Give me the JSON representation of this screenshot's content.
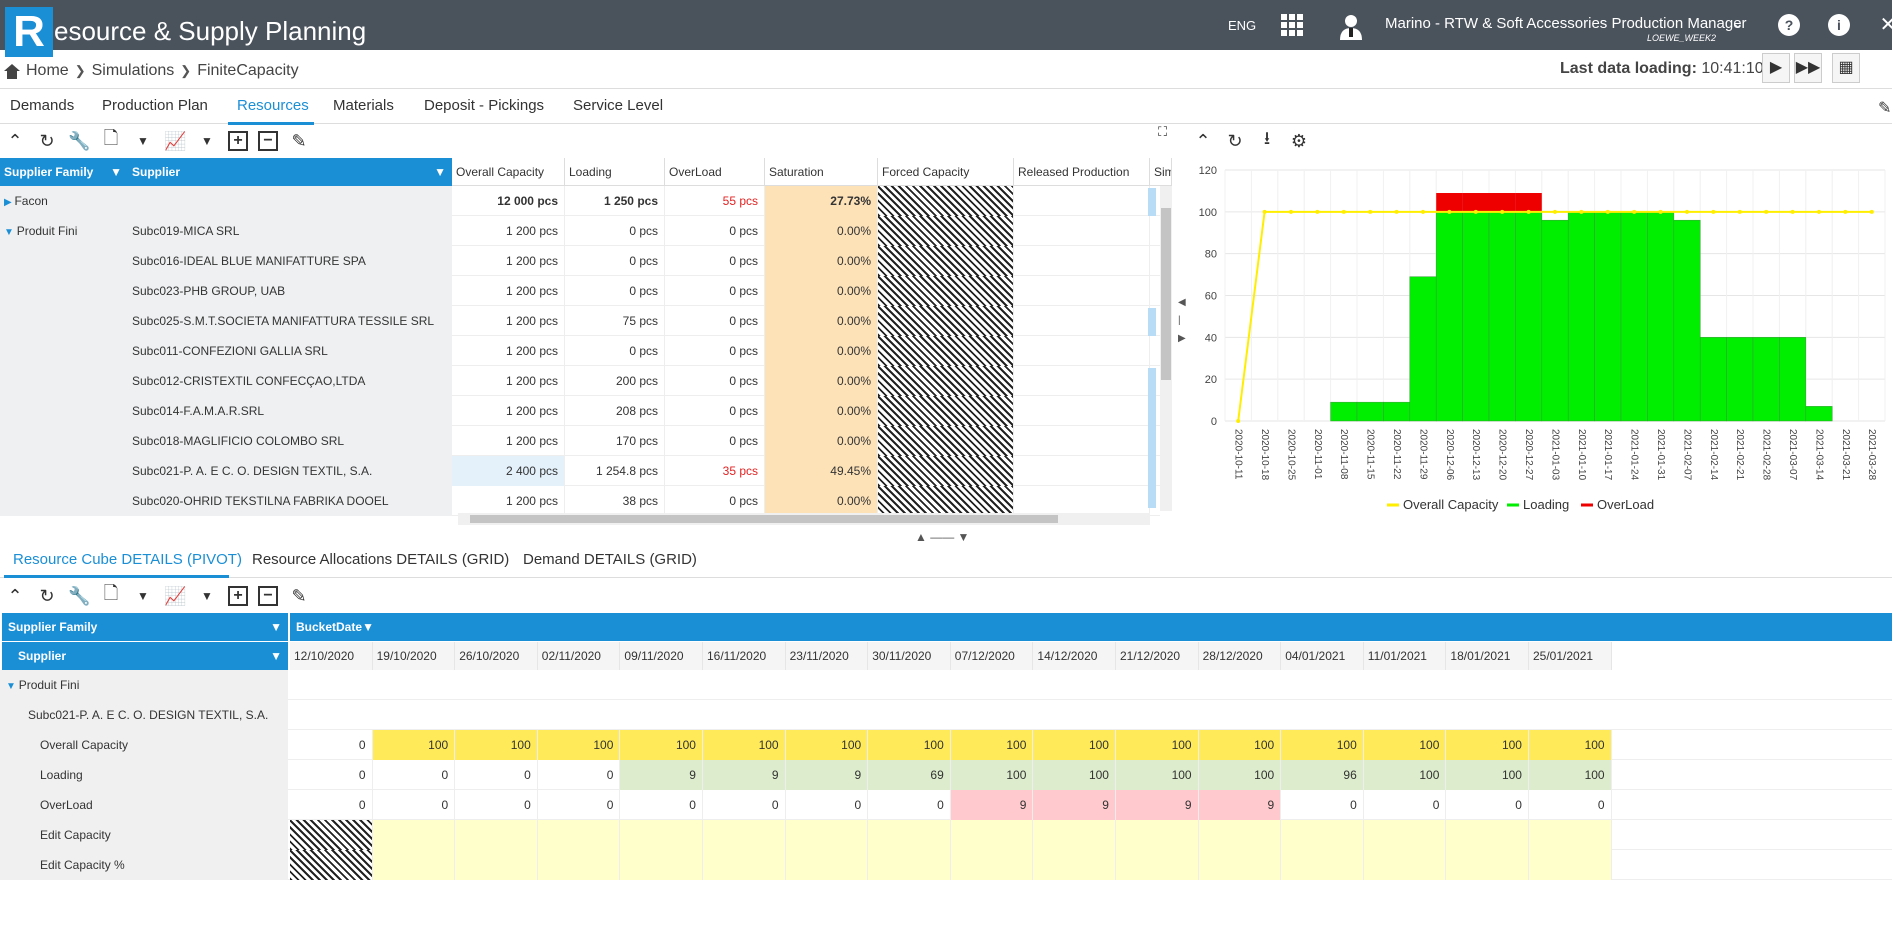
{
  "app": {
    "logo_letter": "R",
    "title": "esource & Supply Planning",
    "lang": "ENG",
    "user": "Marino - RTW & Soft Accessories Production Manager",
    "user_sub": "LOEWE_WEEK2"
  },
  "breadcrumb": [
    "Home",
    "Simulations",
    "FiniteCapacity"
  ],
  "last_load": {
    "label": "Last data loading:",
    "time": "10:41:10"
  },
  "tabs": [
    "Demands",
    "Production Plan",
    "Resources",
    "Materials",
    "Deposit - Pickings",
    "Service Level"
  ],
  "grid": {
    "headers": {
      "family": "Supplier Family",
      "supplier": "Supplier",
      "overall": "Overall Capacity",
      "loading": "Loading",
      "overload": "OverLoad",
      "saturation": "Saturation",
      "forced": "Forced Capacity",
      "released": "Released Production",
      "sim": "Sim"
    },
    "rows": [
      {
        "family": "Facon",
        "supplier": "",
        "overall": "12 000 pcs",
        "loading": "1 250 pcs",
        "overload": "55 pcs",
        "saturation": "27.73%"
      },
      {
        "family": "Produit Fini",
        "supplier": "Subc019-MICA SRL",
        "overall": "1 200 pcs",
        "loading": "0 pcs",
        "overload": "0 pcs",
        "saturation": "0.00%"
      },
      {
        "family": "",
        "supplier": "Subc016-IDEAL BLUE MANIFATTURE SPA",
        "overall": "1 200 pcs",
        "loading": "0 pcs",
        "overload": "0 pcs",
        "saturation": "0.00%"
      },
      {
        "family": "",
        "supplier": "Subc023-PHB GROUP, UAB",
        "overall": "1 200 pcs",
        "loading": "0 pcs",
        "overload": "0 pcs",
        "saturation": "0.00%"
      },
      {
        "family": "",
        "supplier": "Subc025-S.M.T.SOCIETA MANIFATTURA TESSILE SRL",
        "overall": "1 200 pcs",
        "loading": "75 pcs",
        "overload": "0 pcs",
        "saturation": "0.00%"
      },
      {
        "family": "",
        "supplier": "Subc011-CONFEZIONI GALLIA SRL",
        "overall": "1 200 pcs",
        "loading": "0 pcs",
        "overload": "0 pcs",
        "saturation": "0.00%"
      },
      {
        "family": "",
        "supplier": "Subc012-CRISTEXTIL CONFECÇAO,LTDA",
        "overall": "1 200 pcs",
        "loading": "200 pcs",
        "overload": "0 pcs",
        "saturation": "0.00%"
      },
      {
        "family": "",
        "supplier": "Subc014-F.A.M.A.R.SRL",
        "overall": "1 200 pcs",
        "loading": "208 pcs",
        "overload": "0 pcs",
        "saturation": "0.00%"
      },
      {
        "family": "",
        "supplier": "Subc018-MAGLIFICIO COLOMBO SRL",
        "overall": "1 200 pcs",
        "loading": "170 pcs",
        "overload": "0 pcs",
        "saturation": "0.00%"
      },
      {
        "family": "",
        "supplier": "Subc021-P. A. E C. O. DESIGN TEXTIL, S.A.",
        "overall": "2 400 pcs",
        "loading": "1 254.8 pcs",
        "overload": "35 pcs",
        "saturation": "49.45%"
      },
      {
        "family": "",
        "supplier": "Subc020-OHRID TEKSTILNA FABRIKA DOOEL",
        "overall": "1 200 pcs",
        "loading": "38 pcs",
        "overload": "0 pcs",
        "saturation": "0.00%"
      }
    ]
  },
  "chart_data": {
    "type": "bar",
    "categories": [
      "2020-10-11",
      "2020-10-18",
      "2020-10-25",
      "2020-11-01",
      "2020-11-08",
      "2020-11-15",
      "2020-11-22",
      "2020-11-29",
      "2020-12-06",
      "2020-12-13",
      "2020-12-20",
      "2020-12-27",
      "2021-01-03",
      "2021-01-10",
      "2021-01-17",
      "2021-01-24",
      "2021-01-31",
      "2021-02-07",
      "2021-02-14",
      "2021-02-21",
      "2021-02-28",
      "2021-03-07",
      "2021-03-14",
      "2021-03-21",
      "2021-03-28"
    ],
    "series": [
      {
        "name": "Overall Capacity",
        "type": "line",
        "color": "#ffee00",
        "values": [
          0,
          100,
          100,
          100,
          100,
          100,
          100,
          100,
          100,
          100,
          100,
          100,
          100,
          100,
          100,
          100,
          100,
          100,
          100,
          100,
          100,
          100,
          100,
          100,
          100
        ]
      },
      {
        "name": "Loading",
        "type": "bar",
        "color": "#00ee00",
        "values": [
          0,
          0,
          0,
          0,
          9,
          9,
          9,
          69,
          100,
          100,
          100,
          100,
          96,
          100,
          100,
          100,
          100,
          96,
          40,
          40,
          40,
          40,
          7,
          0,
          0
        ]
      },
      {
        "name": "OverLoad",
        "type": "bar",
        "color": "#ee0000",
        "values": [
          0,
          0,
          0,
          0,
          0,
          0,
          0,
          0,
          9,
          9,
          9,
          9,
          0,
          0,
          0,
          0,
          0,
          0,
          0,
          0,
          0,
          0,
          0,
          0,
          0
        ]
      }
    ],
    "yticks": [
      0,
      20,
      40,
      60,
      80,
      100,
      120
    ],
    "ylim": [
      0,
      120
    ]
  },
  "tabs2": [
    "Resource Cube DETAILS (PIVOT)",
    "Resource Allocations DETAILS (GRID)",
    "Demand DETAILS (GRID)"
  ],
  "pivot": {
    "h_family": "Supplier Family",
    "h_bucket": "BucketDate",
    "h_supplier": "Supplier",
    "dates": [
      "12/10/2020",
      "19/10/2020",
      "26/10/2020",
      "02/11/2020",
      "09/11/2020",
      "16/11/2020",
      "23/11/2020",
      "30/11/2020",
      "07/12/2020",
      "14/12/2020",
      "21/12/2020",
      "28/12/2020",
      "04/01/2021",
      "11/01/2021",
      "18/01/2021",
      "25/01/2021"
    ],
    "family": "Produit Fini",
    "supplier": "Subc021-P. A. E C. O. DESIGN TEXTIL, S.A.",
    "measures": [
      {
        "label": "Overall Capacity",
        "values": [
          "0",
          "100",
          "100",
          "100",
          "100",
          "100",
          "100",
          "100",
          "100",
          "100",
          "100",
          "100",
          "100",
          "100",
          "100",
          "100"
        ]
      },
      {
        "label": "Loading",
        "values": [
          "0",
          "0",
          "0",
          "0",
          "9",
          "9",
          "9",
          "69",
          "100",
          "100",
          "100",
          "100",
          "96",
          "100",
          "100",
          "100"
        ]
      },
      {
        "label": "OverLoad",
        "values": [
          "0",
          "0",
          "0",
          "0",
          "0",
          "0",
          "0",
          "0",
          "9",
          "9",
          "9",
          "9",
          "0",
          "0",
          "0",
          "0"
        ]
      },
      {
        "label": "Edit Capacity",
        "values": []
      },
      {
        "label": "Edit Capacity %",
        "values": []
      }
    ]
  }
}
